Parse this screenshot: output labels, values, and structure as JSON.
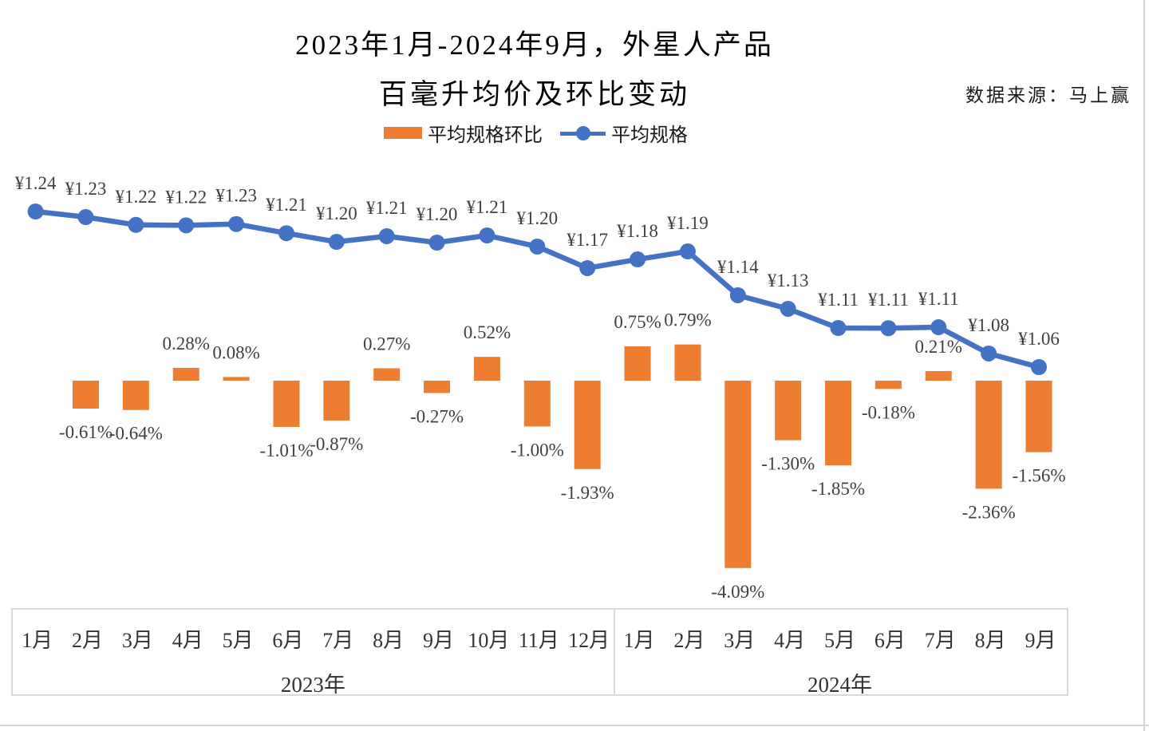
{
  "title": {
    "line1": "2023年1月-2024年9月，外星人产品",
    "line2": "百毫升均价及环比变动"
  },
  "source": "数据来源：马上赢",
  "legend": {
    "bar_label": "平均规格环比",
    "line_label": "平均规格"
  },
  "colors": {
    "bar": "#ED7D31",
    "line": "#4472C4",
    "label": "#404040",
    "axis_border": "#D9D9D9"
  },
  "chart_data": {
    "type": "bar+line combo",
    "categories": [
      "1月",
      "2月",
      "3月",
      "4月",
      "5月",
      "6月",
      "7月",
      "8月",
      "9月",
      "10月",
      "11月",
      "12月",
      "1月",
      "2月",
      "3月",
      "4月",
      "5月",
      "6月",
      "7月",
      "8月",
      "9月"
    ],
    "category_groups": [
      {
        "label": "2023年",
        "start": 0,
        "count": 12
      },
      {
        "label": "2024年",
        "start": 12,
        "count": 9
      }
    ],
    "series": [
      {
        "name": "平均规格环比",
        "type": "bar",
        "unit": "%",
        "color": "#ED7D31",
        "values": [
          null,
          -0.61,
          -0.64,
          0.28,
          0.08,
          -1.01,
          -0.87,
          0.27,
          -0.27,
          0.52,
          -1.0,
          -1.93,
          0.75,
          0.79,
          -4.09,
          -1.3,
          -1.85,
          -0.18,
          0.21,
          -2.36,
          -1.56
        ],
        "labels": [
          null,
          "-0.61%",
          "-0.64%",
          "0.28%",
          "0.08%",
          "-1.01%",
          "-0.87%",
          "0.27%",
          "-0.27%",
          "0.52%",
          "-1.00%",
          "-1.93%",
          "0.75%",
          "0.79%",
          "-4.09%",
          "-1.30%",
          "-1.85%",
          "-0.18%",
          "0.21%",
          "-2.36%",
          "-1.56%"
        ],
        "axis_visible": false
      },
      {
        "name": "平均规格",
        "type": "line",
        "unit": "¥",
        "color": "#4472C4",
        "values": [
          1.24,
          1.23,
          1.22,
          1.22,
          1.23,
          1.21,
          1.2,
          1.21,
          1.2,
          1.21,
          1.2,
          1.17,
          1.18,
          1.19,
          1.14,
          1.13,
          1.11,
          1.11,
          1.11,
          1.08,
          1.06
        ],
        "values_precise_estimate": [
          1.24,
          1.2335,
          1.2245,
          1.224,
          1.2255,
          1.2149,
          1.2049,
          1.2114,
          1.204,
          1.2123,
          1.1994,
          1.1745,
          1.1846,
          1.1938,
          1.1431,
          1.1274,
          1.1052,
          1.105,
          1.1061,
          1.0757,
          1.06
        ],
        "labels": [
          "¥1.24",
          "¥1.23",
          "¥1.22",
          "¥1.22",
          "¥1.23",
          "¥1.21",
          "¥1.20",
          "¥1.21",
          "¥1.20",
          "¥1.21",
          "¥1.20",
          "¥1.17",
          "¥1.18",
          "¥1.19",
          "¥1.14",
          "¥1.13",
          "¥1.11",
          "¥1.11",
          "¥1.11",
          "¥1.08",
          "¥1.06"
        ],
        "axis_visible": false
      }
    ],
    "legend_position": "top",
    "grid": false
  }
}
